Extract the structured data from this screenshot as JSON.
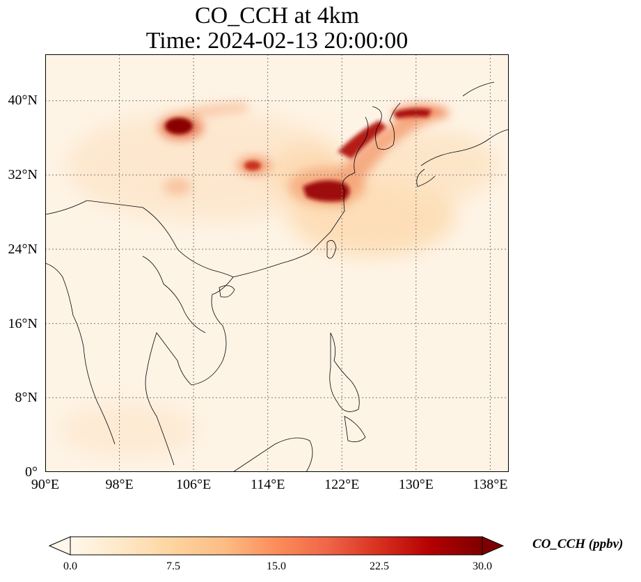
{
  "title": {
    "line1": "CO_CCH at 4km",
    "line2": "Time: 2024-02-13 20:00:00"
  },
  "map": {
    "projection": "PlateCarree",
    "extent": {
      "lon_min": 90,
      "lon_max": 140,
      "lat_min": 0,
      "lat_max": 45
    },
    "gridlines": "dotted",
    "lat_ticks": [
      "40°N",
      "32°N",
      "24°N",
      "16°N",
      "8°N",
      "0°"
    ],
    "lon_ticks": [
      "90°E",
      "98°E",
      "106°E",
      "114°E",
      "122°E",
      "130°E",
      "138°E"
    ],
    "features": [
      "coastlines",
      "country-borders"
    ],
    "field_variable": "CO_CCH",
    "field_units": "ppbv"
  },
  "colorbar": {
    "label": "CO_CCH (ppbv)",
    "colormap": "OrRd",
    "range": [
      0.0,
      30.0
    ],
    "extend": "both",
    "ticks": [
      "0.0",
      "7.5",
      "15.0",
      "22.5",
      "30.0"
    ],
    "colors": [
      "#fff7ec",
      "#fee8c8",
      "#fdd49e",
      "#fdbb84",
      "#fc8d59",
      "#ef6548",
      "#d7301f",
      "#b30000",
      "#7f0000"
    ]
  }
}
